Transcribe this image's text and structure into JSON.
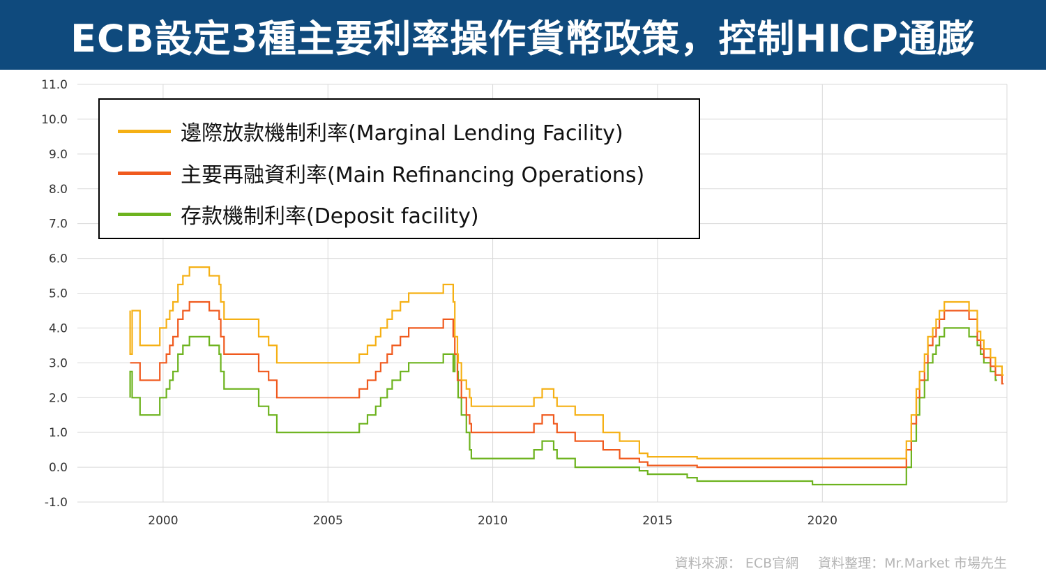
{
  "title": "ECB設定3種主要利率操作貨幣政策，控制HICP通膨",
  "source": {
    "data_source": "資料來源：  ECB官網",
    "compiled_by": "資料整理：Mr.Market 市場先生"
  },
  "colors": {
    "banner_bg": "#0f4a7d",
    "mlf": "#f5b014",
    "mro": "#f05a1e",
    "df": "#6db31e",
    "grid": "#d9d9d9"
  },
  "chart_data": {
    "type": "line",
    "title": "",
    "xlabel": "",
    "ylabel": "",
    "xlim": [
      1997.4,
      2025.6
    ],
    "ylim": [
      -1.0,
      11.0
    ],
    "x_ticks": [
      "2000",
      "2005",
      "2010",
      "2015",
      "2020"
    ],
    "y_ticks": [
      "11.0",
      "10.0",
      "9.0",
      "8.0",
      "7.0",
      "6.0",
      "5.0",
      "4.0",
      "3.0",
      "2.0",
      "1.0",
      "0.0",
      "-1.0"
    ],
    "grid": true,
    "legend_position": "top-left",
    "series": [
      {
        "name": "邊際放款機制利率(Marginal  Lending Facility)",
        "points": [
          [
            1999.0,
            4.5
          ],
          [
            1999.0,
            3.25
          ],
          [
            1999.06,
            4.5
          ],
          [
            1999.3,
            3.5
          ],
          [
            1999.9,
            4.0
          ],
          [
            2000.1,
            4.25
          ],
          [
            2000.2,
            4.5
          ],
          [
            2000.3,
            4.75
          ],
          [
            2000.45,
            5.25
          ],
          [
            2000.6,
            5.5
          ],
          [
            2000.8,
            5.75
          ],
          [
            2001.4,
            5.5
          ],
          [
            2001.7,
            5.25
          ],
          [
            2001.75,
            4.75
          ],
          [
            2001.85,
            4.25
          ],
          [
            2002.9,
            3.75
          ],
          [
            2003.2,
            3.5
          ],
          [
            2003.45,
            3.0
          ],
          [
            2005.95,
            3.25
          ],
          [
            2006.2,
            3.5
          ],
          [
            2006.45,
            3.75
          ],
          [
            2006.6,
            4.0
          ],
          [
            2006.8,
            4.25
          ],
          [
            2006.95,
            4.5
          ],
          [
            2007.2,
            4.75
          ],
          [
            2007.45,
            5.0
          ],
          [
            2008.5,
            5.25
          ],
          [
            2008.8,
            4.75
          ],
          [
            2008.85,
            3.75
          ],
          [
            2008.93,
            3.25
          ],
          [
            2008.95,
            3.0
          ],
          [
            2009.05,
            2.5
          ],
          [
            2009.2,
            2.25
          ],
          [
            2009.3,
            2.0
          ],
          [
            2009.35,
            1.75
          ],
          [
            2011.25,
            2.0
          ],
          [
            2011.5,
            2.25
          ],
          [
            2011.85,
            2.0
          ],
          [
            2011.95,
            1.75
          ],
          [
            2012.5,
            1.5
          ],
          [
            2013.35,
            1.0
          ],
          [
            2013.85,
            0.75
          ],
          [
            2014.45,
            0.4
          ],
          [
            2014.7,
            0.3
          ],
          [
            2016.2,
            0.25
          ],
          [
            2022.55,
            0.75
          ],
          [
            2022.7,
            1.5
          ],
          [
            2022.85,
            2.25
          ],
          [
            2022.95,
            2.75
          ],
          [
            2023.1,
            3.25
          ],
          [
            2023.2,
            3.75
          ],
          [
            2023.35,
            4.0
          ],
          [
            2023.45,
            4.25
          ],
          [
            2023.55,
            4.5
          ],
          [
            2023.7,
            4.75
          ],
          [
            2024.45,
            4.5
          ],
          [
            2024.7,
            3.9
          ],
          [
            2024.8,
            3.65
          ],
          [
            2024.9,
            3.4
          ],
          [
            2025.1,
            3.15
          ],
          [
            2025.25,
            2.9
          ],
          [
            2025.45,
            2.65
          ]
        ]
      },
      {
        "name": "主要再融資利率(Main Refinancing Operations)",
        "points": [
          [
            1999.0,
            3.0
          ],
          [
            1999.3,
            2.5
          ],
          [
            1999.9,
            3.0
          ],
          [
            2000.1,
            3.25
          ],
          [
            2000.2,
            3.5
          ],
          [
            2000.3,
            3.75
          ],
          [
            2000.45,
            4.25
          ],
          [
            2000.6,
            4.5
          ],
          [
            2000.8,
            4.75
          ],
          [
            2001.4,
            4.5
          ],
          [
            2001.7,
            4.25
          ],
          [
            2001.75,
            3.75
          ],
          [
            2001.85,
            3.25
          ],
          [
            2002.9,
            2.75
          ],
          [
            2003.2,
            2.5
          ],
          [
            2003.45,
            2.0
          ],
          [
            2005.95,
            2.25
          ],
          [
            2006.2,
            2.5
          ],
          [
            2006.45,
            2.75
          ],
          [
            2006.6,
            3.0
          ],
          [
            2006.8,
            3.25
          ],
          [
            2006.95,
            3.5
          ],
          [
            2007.2,
            3.75
          ],
          [
            2007.45,
            4.0
          ],
          [
            2008.5,
            4.25
          ],
          [
            2008.8,
            3.75
          ],
          [
            2008.85,
            3.25
          ],
          [
            2008.93,
            2.5
          ],
          [
            2009.05,
            2.0
          ],
          [
            2009.2,
            1.5
          ],
          [
            2009.3,
            1.25
          ],
          [
            2009.35,
            1.0
          ],
          [
            2011.25,
            1.25
          ],
          [
            2011.5,
            1.5
          ],
          [
            2011.85,
            1.25
          ],
          [
            2011.95,
            1.0
          ],
          [
            2012.5,
            0.75
          ],
          [
            2013.35,
            0.5
          ],
          [
            2013.85,
            0.25
          ],
          [
            2014.45,
            0.15
          ],
          [
            2014.7,
            0.05
          ],
          [
            2016.2,
            0.0
          ],
          [
            2022.55,
            0.5
          ],
          [
            2022.7,
            1.25
          ],
          [
            2022.85,
            2.0
          ],
          [
            2022.95,
            2.5
          ],
          [
            2023.1,
            3.0
          ],
          [
            2023.2,
            3.5
          ],
          [
            2023.35,
            3.75
          ],
          [
            2023.45,
            4.0
          ],
          [
            2023.55,
            4.25
          ],
          [
            2023.7,
            4.5
          ],
          [
            2024.45,
            4.25
          ],
          [
            2024.7,
            3.65
          ],
          [
            2024.8,
            3.4
          ],
          [
            2024.9,
            3.15
          ],
          [
            2025.1,
            2.9
          ],
          [
            2025.25,
            2.65
          ],
          [
            2025.45,
            2.4
          ]
        ]
      },
      {
        "name": "存款機制利率(Deposit  facility)",
        "points": [
          [
            1999.0,
            2.0
          ],
          [
            1999.0,
            2.75
          ],
          [
            1999.06,
            2.0
          ],
          [
            1999.3,
            1.5
          ],
          [
            1999.9,
            2.0
          ],
          [
            2000.1,
            2.25
          ],
          [
            2000.2,
            2.5
          ],
          [
            2000.3,
            2.75
          ],
          [
            2000.45,
            3.25
          ],
          [
            2000.6,
            3.5
          ],
          [
            2000.8,
            3.75
          ],
          [
            2001.4,
            3.5
          ],
          [
            2001.7,
            3.25
          ],
          [
            2001.75,
            2.75
          ],
          [
            2001.85,
            2.25
          ],
          [
            2002.9,
            1.75
          ],
          [
            2003.2,
            1.5
          ],
          [
            2003.45,
            1.0
          ],
          [
            2005.95,
            1.25
          ],
          [
            2006.2,
            1.5
          ],
          [
            2006.45,
            1.75
          ],
          [
            2006.6,
            2.0
          ],
          [
            2006.8,
            2.25
          ],
          [
            2006.95,
            2.5
          ],
          [
            2007.2,
            2.75
          ],
          [
            2007.45,
            3.0
          ],
          [
            2008.5,
            3.25
          ],
          [
            2008.8,
            2.75
          ],
          [
            2008.85,
            3.25
          ],
          [
            2008.93,
            2.75
          ],
          [
            2008.95,
            2.0
          ],
          [
            2009.05,
            1.5
          ],
          [
            2009.2,
            1.0
          ],
          [
            2009.3,
            0.5
          ],
          [
            2009.35,
            0.25
          ],
          [
            2011.25,
            0.5
          ],
          [
            2011.5,
            0.75
          ],
          [
            2011.85,
            0.5
          ],
          [
            2011.95,
            0.25
          ],
          [
            2012.5,
            0.0
          ],
          [
            2014.45,
            -0.1
          ],
          [
            2014.7,
            -0.2
          ],
          [
            2015.9,
            -0.3
          ],
          [
            2016.2,
            -0.4
          ],
          [
            2019.7,
            -0.5
          ],
          [
            2022.55,
            0.0
          ],
          [
            2022.7,
            0.75
          ],
          [
            2022.85,
            1.5
          ],
          [
            2022.95,
            2.0
          ],
          [
            2023.1,
            2.5
          ],
          [
            2023.2,
            3.0
          ],
          [
            2023.35,
            3.25
          ],
          [
            2023.45,
            3.5
          ],
          [
            2023.55,
            3.75
          ],
          [
            2023.7,
            4.0
          ],
          [
            2024.45,
            3.75
          ],
          [
            2024.7,
            3.5
          ],
          [
            2024.8,
            3.25
          ],
          [
            2024.9,
            3.0
          ],
          [
            2025.1,
            2.75
          ],
          [
            2025.25,
            2.5
          ]
        ]
      }
    ]
  }
}
